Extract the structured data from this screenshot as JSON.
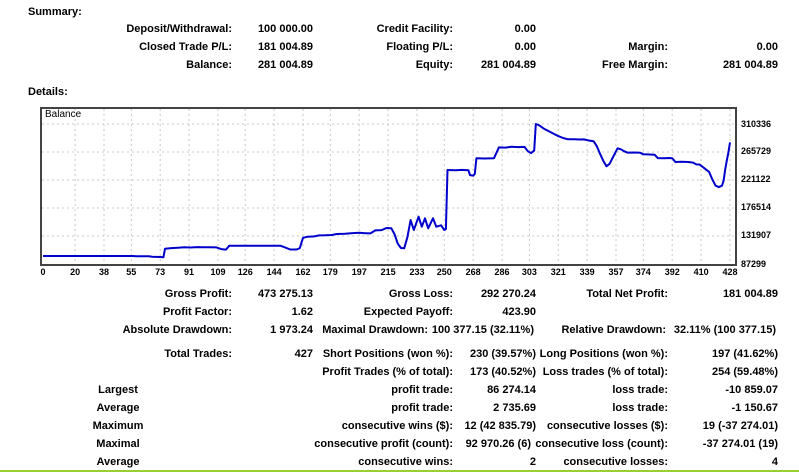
{
  "summary": {
    "title": "Summary:",
    "rows": [
      {
        "cells": [
          "Deposit/Withdrawal:",
          "100 000.00",
          "Credit Facility:",
          "0.00",
          "",
          ""
        ]
      },
      {
        "cells": [
          "Closed Trade P/L:",
          "181 004.89",
          "Floating P/L:",
          "0.00",
          "Margin:",
          "0.00"
        ]
      },
      {
        "cells": [
          "Balance:",
          "281 004.89",
          "Equity:",
          "281 004.89",
          "Free Margin:",
          "281 004.89"
        ]
      }
    ]
  },
  "details": {
    "title": "Details:",
    "rows": [
      {
        "cells": [
          "Gross Profit:",
          "473 275.13",
          "Gross Loss:",
          "292 270.24",
          "Total Net Profit:",
          "181 004.89"
        ]
      },
      {
        "cells": [
          "Profit Factor:",
          "1.62",
          "Expected Payoff:",
          "423.90",
          "",
          ""
        ]
      },
      {
        "cells": [
          "Absolute Drawdown:",
          "1 973.24",
          "Maximal Drawdown:",
          "100 377.15 (32.11%)",
          "Relative Drawdown:",
          "32.11% (100 377.15)"
        ]
      },
      {
        "gap": true,
        "cells": [
          "Total Trades:",
          "427",
          "Short Positions (won %):",
          "230 (39.57%)",
          "Long Positions (won %):",
          "197 (41.62%)"
        ]
      },
      {
        "cells": [
          "",
          "",
          "Profit Trades (% of total):",
          "173 (40.52%)",
          "Loss trades (% of total):",
          "254 (59.48%)"
        ]
      },
      {
        "center1": true,
        "cells": [
          "Largest",
          "",
          "profit trade:",
          "86 274.14",
          "loss trade:",
          "-10 859.07"
        ]
      },
      {
        "center1": true,
        "cells": [
          "Average",
          "",
          "profit trade:",
          "2 735.69",
          "loss trade:",
          "-1 150.67"
        ]
      },
      {
        "center1": true,
        "cells": [
          "Maximum",
          "",
          "consecutive wins ($):",
          "12 (42 835.79)",
          "consecutive losses ($):",
          "19 (-37 274.01)"
        ]
      },
      {
        "center1": true,
        "cells": [
          "Maximal",
          "",
          "consecutive profit (count):",
          "92 970.26 (6)",
          "consecutive loss (count):",
          "-37 274.01 (19)"
        ]
      },
      {
        "center1": true,
        "cells": [
          "Average",
          "",
          "consecutive wins:",
          "2",
          "consecutive losses:",
          "4"
        ]
      }
    ]
  },
  "chart_data": {
    "type": "line",
    "legend": "Balance",
    "line_color": "#0000CC",
    "grid_color": "#c9c9c9",
    "border_color": "#434343",
    "x_ticks": [
      0,
      20,
      38,
      55,
      73,
      91,
      109,
      126,
      144,
      162,
      179,
      197,
      215,
      233,
      250,
      268,
      286,
      303,
      321,
      339,
      357,
      374,
      392,
      410,
      428
    ],
    "y_ticks": [
      87299,
      131907,
      176514,
      221122,
      265729,
      310336
    ],
    "xlim": [
      0,
      432
    ],
    "ylim": [
      87299,
      310336
    ],
    "points": [
      [
        0,
        100000
      ],
      [
        56,
        100000
      ],
      [
        58,
        99600
      ],
      [
        66,
        99600
      ],
      [
        68,
        98900
      ],
      [
        73,
        98400
      ],
      [
        75,
        98027
      ],
      [
        76,
        111500
      ],
      [
        80,
        112600
      ],
      [
        84,
        113300
      ],
      [
        88,
        114100
      ],
      [
        92,
        113600
      ],
      [
        96,
        114300
      ],
      [
        100,
        114100
      ],
      [
        104,
        113900
      ],
      [
        108,
        113700
      ],
      [
        111,
        111000
      ],
      [
        114,
        110300
      ],
      [
        116,
        116300
      ],
      [
        148,
        116300
      ],
      [
        151,
        113500
      ],
      [
        154,
        110400
      ],
      [
        158,
        110400
      ],
      [
        160,
        112500
      ],
      [
        162,
        129000
      ],
      [
        165,
        130800
      ],
      [
        169,
        131300
      ],
      [
        172,
        132800
      ],
      [
        176,
        133100
      ],
      [
        180,
        133500
      ],
      [
        183,
        135100
      ],
      [
        188,
        135500
      ],
      [
        193,
        136600
      ],
      [
        197,
        137000
      ],
      [
        201,
        136300
      ],
      [
        204,
        136000
      ],
      [
        207,
        140800
      ],
      [
        211,
        141300
      ],
      [
        214,
        144600
      ],
      [
        217,
        144300
      ],
      [
        219,
        135000
      ],
      [
        221,
        120000
      ],
      [
        223,
        112800
      ],
      [
        225,
        112300
      ],
      [
        227,
        130000
      ],
      [
        229,
        157400
      ],
      [
        231,
        141500
      ],
      [
        234,
        162700
      ],
      [
        236,
        146700
      ],
      [
        238,
        160100
      ],
      [
        240,
        144100
      ],
      [
        243,
        160100
      ],
      [
        245,
        146700
      ],
      [
        248,
        149000
      ],
      [
        250,
        141500
      ],
      [
        251,
        143000
      ],
      [
        252,
        237000
      ],
      [
        257,
        236500
      ],
      [
        261,
        237200
      ],
      [
        265,
        236800
      ],
      [
        266,
        229000
      ],
      [
        268,
        228000
      ],
      [
        269,
        231000
      ],
      [
        270,
        255700
      ],
      [
        275,
        255400
      ],
      [
        281,
        255900
      ],
      [
        284,
        273000
      ],
      [
        288,
        272800
      ],
      [
        292,
        274200
      ],
      [
        296,
        273600
      ],
      [
        300,
        273800
      ],
      [
        302,
        267000
      ],
      [
        304,
        264000
      ],
      [
        306,
        268000
      ],
      [
        307,
        310336
      ],
      [
        309,
        308500
      ],
      [
        312,
        303000
      ],
      [
        315,
        299000
      ],
      [
        318,
        295000
      ],
      [
        321,
        291000
      ],
      [
        324,
        288000
      ],
      [
        327,
        286000
      ],
      [
        331,
        286200
      ],
      [
        334,
        285600
      ],
      [
        337,
        285800
      ],
      [
        340,
        284000
      ],
      [
        343,
        283000
      ],
      [
        345,
        275000
      ],
      [
        347,
        263000
      ],
      [
        349,
        252000
      ],
      [
        351,
        243000
      ],
      [
        353,
        247000
      ],
      [
        355,
        257000
      ],
      [
        358,
        271600
      ],
      [
        360,
        270000
      ],
      [
        362,
        267000
      ],
      [
        364,
        264800
      ],
      [
        368,
        265000
      ],
      [
        372,
        264600
      ],
      [
        374,
        262000
      ],
      [
        378,
        261800
      ],
      [
        381,
        261500
      ],
      [
        383,
        256000
      ],
      [
        387,
        255800
      ],
      [
        390,
        256200
      ],
      [
        392,
        255800
      ],
      [
        394,
        249800
      ],
      [
        398,
        250200
      ],
      [
        402,
        249800
      ],
      [
        405,
        248800
      ],
      [
        407,
        246000
      ],
      [
        409,
        245800
      ],
      [
        411,
        242000
      ],
      [
        413,
        238000
      ],
      [
        415,
        234000
      ],
      [
        417,
        222000
      ],
      [
        419,
        212000
      ],
      [
        421,
        209800
      ],
      [
        423,
        212000
      ],
      [
        424,
        220000
      ],
      [
        425,
        238000
      ],
      [
        426,
        252000
      ],
      [
        427,
        265000
      ],
      [
        428,
        281005
      ]
    ]
  },
  "divider_color": "#9acd32"
}
